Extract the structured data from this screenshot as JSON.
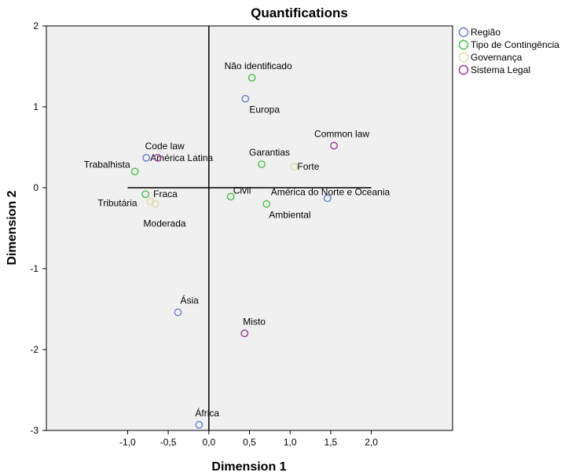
{
  "chart_data": {
    "type": "scatter",
    "title": "Quantifications",
    "xlabel": "Dimension 1",
    "ylabel": "Dimension 2",
    "xlim": [
      -2.0,
      3.0
    ],
    "ylim": [
      -3.0,
      2.0
    ],
    "x_ticks": [
      -1.0,
      -0.5,
      0.0,
      0.5,
      1.0,
      1.5,
      2.0
    ],
    "x_tick_labels": [
      "-1,0",
      "-0,5",
      "0,0",
      "0,5",
      "1,0",
      "1,5",
      "2,0"
    ],
    "y_ticks": [
      2,
      1,
      0,
      -1,
      -2,
      -3
    ],
    "y_tick_labels": [
      "2",
      "1",
      "0",
      "-1",
      "-2",
      "-3"
    ],
    "grid": false,
    "legend_position": "right",
    "series": [
      {
        "name": "Região",
        "color": "#6b7fcf",
        "points": [
          {
            "label": "Europa",
            "x": 0.45,
            "y": 1.1
          },
          {
            "label": "América Latina",
            "x": -0.77,
            "y": 0.37
          },
          {
            "label": "América do Norte e Oceania",
            "x": 1.46,
            "y": -0.13
          },
          {
            "label": "Ásia",
            "x": -0.38,
            "y": -1.54
          },
          {
            "label": "África",
            "x": -0.12,
            "y": -2.93
          }
        ]
      },
      {
        "name": "Tipo de Contingência",
        "color": "#4cc04c",
        "points": [
          {
            "label": "Não identificado",
            "x": 0.53,
            "y": 1.36
          },
          {
            "label": "Garantias",
            "x": 0.65,
            "y": 0.29
          },
          {
            "label": "Trabalhista",
            "x": -0.91,
            "y": 0.2
          },
          {
            "label": "Civil",
            "x": 0.27,
            "y": -0.11
          },
          {
            "label": "Fraca",
            "x": -0.78,
            "y": -0.08
          },
          {
            "label": "Ambiental",
            "x": 0.71,
            "y": -0.2
          }
        ]
      },
      {
        "name": "Governança",
        "color": "#e3dca6",
        "points": [
          {
            "label": "Forte",
            "x": 1.05,
            "y": 0.26
          },
          {
            "label": "Tributária",
            "x": -0.72,
            "y": -0.17
          },
          {
            "label": "Moderada",
            "x": -0.66,
            "y": -0.2
          }
        ]
      },
      {
        "name": "Sistema Legal",
        "color": "#9b3a9b",
        "points": [
          {
            "label": "Common law",
            "x": 1.54,
            "y": 0.52
          },
          {
            "label": "Code law",
            "x": -0.63,
            "y": 0.37
          },
          {
            "label": "Misto",
            "x": 0.44,
            "y": -1.8
          }
        ]
      }
    ]
  }
}
